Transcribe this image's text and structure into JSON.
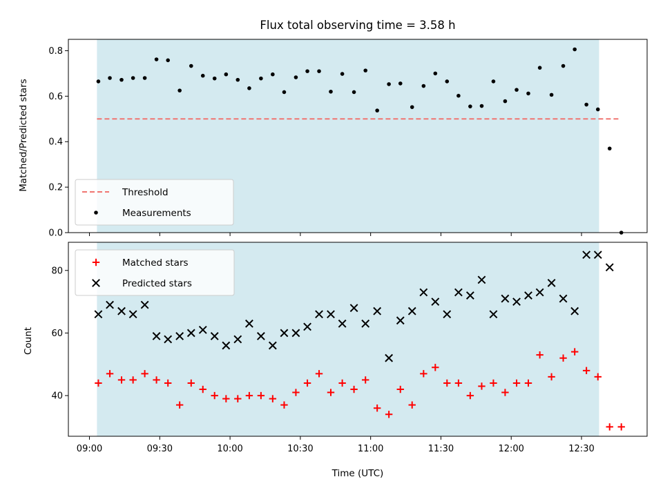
{
  "chart_data": {
    "type": "scatter",
    "title": "Flux total observing time = 3.58 h",
    "xlabel": "Time (UTC)",
    "x_ticks": [
      "09:00",
      "09:30",
      "10:00",
      "10:30",
      "11:00",
      "11:30",
      "12:00",
      "12:30"
    ],
    "x_tick_values_min": [
      0,
      30,
      60,
      90,
      120,
      150,
      180,
      210
    ],
    "x_range_min": [
      -9,
      238
    ],
    "shaded_interval_min": [
      3.2,
      217.5
    ],
    "shade_color": "#d4eaf0",
    "panels": [
      {
        "ylabel": "Matched/Predicted stars",
        "ylim": [
          0,
          0.85
        ],
        "y_ticks": [
          "0.0",
          "0.2",
          "0.4",
          "0.6",
          "0.8"
        ],
        "y_tick_values": [
          0,
          0.2,
          0.4,
          0.6,
          0.8
        ],
        "legend_position": "lower-left",
        "threshold": {
          "name": "Threshold",
          "value": 0.5,
          "x_start": 3.2,
          "x_end": 226,
          "color": "#f07470"
        },
        "series": [
          {
            "name": "Measurements",
            "marker": "dot",
            "color": "#000000",
            "x": [
              3.8,
              8.7,
              13.7,
              18.6,
              23.6,
              28.6,
              33.5,
              38.5,
              43.4,
              48.4,
              53.4,
              58.3,
              63.3,
              68.2,
              73.2,
              78.2,
              83.1,
              88.1,
              93.0,
              98.0,
              103.0,
              107.9,
              112.9,
              117.8,
              122.8,
              127.8,
              132.7,
              137.7,
              142.6,
              147.6,
              152.6,
              157.5,
              162.5,
              167.4,
              172.4,
              177.4,
              182.3,
              187.3,
              192.2,
              197.2,
              202.2,
              207.1,
              212.1,
              217.0,
              222.0,
              227.0
            ],
            "y": [
              0.665,
              0.68,
              0.672,
              0.68,
              0.68,
              0.762,
              0.758,
              0.625,
              0.733,
              0.69,
              0.678,
              0.696,
              0.672,
              0.635,
              0.678,
              0.696,
              0.618,
              0.683,
              0.71,
              0.71,
              0.62,
              0.698,
              0.618,
              0.713,
              0.537,
              0.653,
              0.656,
              0.552,
              0.645,
              0.7,
              0.665,
              0.602,
              0.555,
              0.557,
              0.665,
              0.578,
              0.628,
              0.612,
              0.725,
              0.606,
              0.733,
              0.806,
              0.563,
              0.542,
              0.37,
              0.0
            ]
          }
        ]
      },
      {
        "ylabel": "Count",
        "ylim": [
          27,
          89
        ],
        "y_ticks": [
          "40",
          "60",
          "80"
        ],
        "y_tick_values": [
          40,
          60,
          80
        ],
        "legend_position": "upper-left",
        "series": [
          {
            "name": "Matched stars",
            "marker": "plus",
            "color": "#ff0000",
            "x": [
              3.8,
              8.7,
              13.7,
              18.6,
              23.6,
              28.6,
              33.5,
              38.5,
              43.4,
              48.4,
              53.4,
              58.3,
              63.3,
              68.2,
              73.2,
              78.2,
              83.1,
              88.1,
              93.0,
              98.0,
              103.0,
              107.9,
              112.9,
              117.8,
              122.8,
              127.8,
              132.7,
              137.7,
              142.6,
              147.6,
              152.6,
              157.5,
              162.5,
              167.4,
              172.4,
              177.4,
              182.3,
              187.3,
              192.2,
              197.2,
              202.2,
              207.1,
              212.1,
              217.0,
              222.0,
              227.0
            ],
            "y": [
              44,
              47,
              45,
              45,
              47,
              45,
              44,
              37,
              44,
              42,
              40,
              39,
              39,
              40,
              40,
              39,
              37,
              41,
              44,
              47,
              41,
              44,
              42,
              45,
              36,
              34,
              42,
              37,
              47,
              49,
              44,
              44,
              40,
              43,
              44,
              41,
              44,
              44,
              53,
              46,
              52,
              54,
              48,
              46,
              30,
              30
            ]
          },
          {
            "name": "Predicted stars",
            "marker": "x",
            "color": "#000000",
            "x": [
              3.8,
              8.7,
              13.7,
              18.6,
              23.6,
              28.6,
              33.5,
              38.5,
              43.4,
              48.4,
              53.4,
              58.3,
              63.3,
              68.2,
              73.2,
              78.2,
              83.1,
              88.1,
              93.0,
              98.0,
              103.0,
              107.9,
              112.9,
              117.8,
              122.8,
              127.8,
              132.7,
              137.7,
              142.6,
              147.6,
              152.6,
              157.5,
              162.5,
              167.4,
              172.4,
              177.4,
              182.3,
              187.3,
              192.2,
              197.2,
              202.2,
              207.1,
              212.1,
              217.0,
              222.0
            ],
            "y": [
              66,
              69,
              67,
              66,
              69,
              59,
              58,
              59,
              60,
              61,
              59,
              56,
              58,
              63,
              59,
              56,
              60,
              60,
              62,
              66,
              66,
              63,
              68,
              63,
              67,
              52,
              64,
              67,
              73,
              70,
              66,
              73,
              72,
              77,
              66,
              71,
              70,
              72,
              73,
              76,
              71,
              67,
              85,
              85,
              81
            ]
          }
        ]
      }
    ]
  }
}
